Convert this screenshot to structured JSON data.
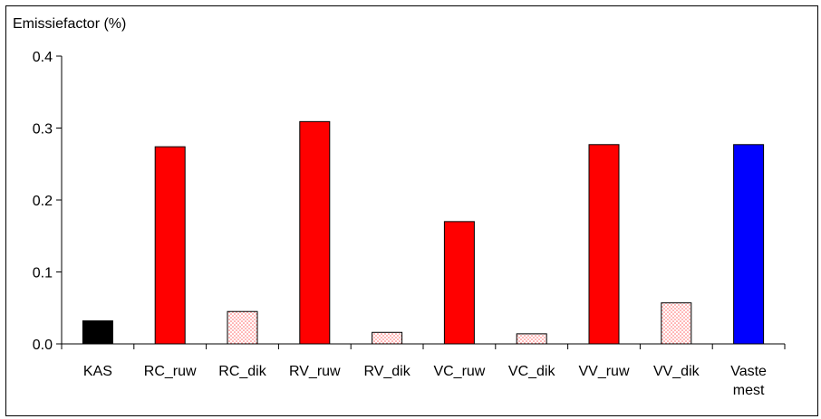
{
  "chart_data": {
    "type": "bar",
    "ylabel": "Emissiefactor (%)",
    "ylim": [
      0,
      0.4
    ],
    "yticks": [
      "0.0",
      "0.1",
      "0.2",
      "0.3",
      "0.4"
    ],
    "categories": [
      "KAS",
      "RC_ruw",
      "RC_dik",
      "RV_ruw",
      "RV_dik",
      "VC_ruw",
      "VC_dik",
      "VV_ruw",
      "VV_dik",
      "Vaste\nmest"
    ],
    "values": [
      0.032,
      0.274,
      0.045,
      0.309,
      0.016,
      0.17,
      0.014,
      0.277,
      0.057,
      0.277
    ],
    "fills": [
      "solid-black",
      "solid-red",
      "dotted-pink",
      "solid-red",
      "dotted-pink",
      "solid-red",
      "dotted-pink",
      "solid-red",
      "dotted-pink",
      "solid-blue"
    ],
    "colors": {
      "black": "#000000",
      "red": "#ff0000",
      "blue": "#0000ff",
      "dot": "#ff6666"
    },
    "grid": false,
    "legend": "none"
  }
}
